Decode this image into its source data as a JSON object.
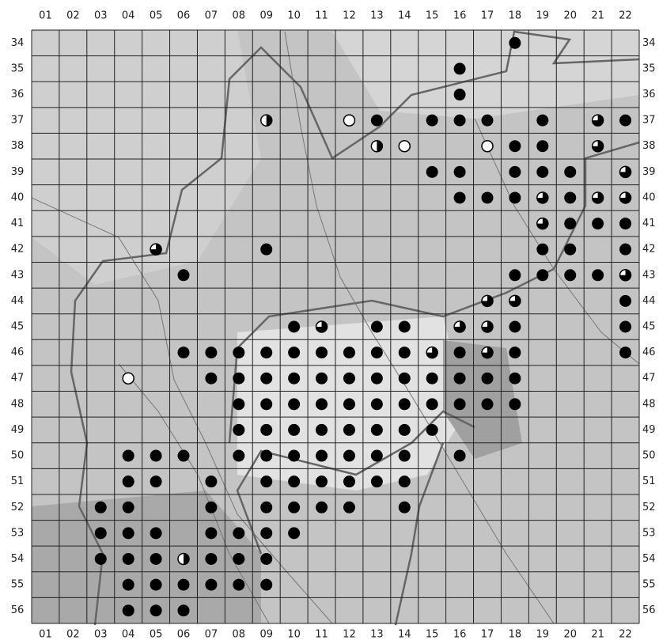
{
  "map": {
    "columns": [
      "01",
      "02",
      "03",
      "04",
      "05",
      "06",
      "07",
      "08",
      "09",
      "10",
      "11",
      "12",
      "13",
      "14",
      "15",
      "16",
      "17",
      "18",
      "19",
      "20",
      "21",
      "22"
    ],
    "rows": [
      "34",
      "35",
      "36",
      "37",
      "38",
      "39",
      "40",
      "41",
      "42",
      "43",
      "44",
      "45",
      "46",
      "47",
      "48",
      "49",
      "50",
      "51",
      "52",
      "53",
      "54",
      "55",
      "56"
    ],
    "records": [
      {
        "row": 34,
        "full": [
          18
        ]
      },
      {
        "row": 35,
        "full": [
          16
        ]
      },
      {
        "row": 36,
        "full": [
          16
        ]
      },
      {
        "row": 37,
        "full": [
          13,
          15,
          16,
          17,
          19,
          22
        ],
        "half": [
          9
        ],
        "threeq": [
          21
        ],
        "open": [
          12
        ]
      },
      {
        "row": 38,
        "full": [
          18,
          19
        ],
        "half": [
          13
        ],
        "threeq": [
          21
        ],
        "open": [
          14,
          17
        ]
      },
      {
        "row": 39,
        "full": [
          15,
          16,
          18,
          19,
          20
        ],
        "threeq": [
          22
        ]
      },
      {
        "row": 40,
        "full": [
          16,
          17,
          18,
          20
        ],
        "threeq": [
          19,
          21,
          22
        ]
      },
      {
        "row": 41,
        "full": [
          20,
          21,
          22
        ],
        "threeq": [
          19
        ]
      },
      {
        "row": 42,
        "full": [
          9,
          19,
          20,
          22
        ],
        "threeq": [
          5
        ]
      },
      {
        "row": 43,
        "full": [
          6,
          18,
          19,
          20,
          21
        ],
        "threeq": [
          22
        ]
      },
      {
        "row": 44,
        "full": [
          22
        ],
        "threeq": [
          17,
          18
        ]
      },
      {
        "row": 45,
        "full": [
          10,
          13,
          14,
          18,
          22
        ],
        "threeq": [
          11,
          16,
          17
        ]
      },
      {
        "row": 46,
        "full": [
          6,
          7,
          8,
          9,
          10,
          11,
          12,
          13,
          14,
          16,
          18,
          22
        ],
        "threeq": [
          15,
          17
        ]
      },
      {
        "row": 47,
        "full": [
          7,
          8,
          9,
          10,
          11,
          12,
          13,
          14,
          15,
          16,
          17,
          18
        ],
        "open": [
          4
        ]
      },
      {
        "row": 48,
        "full": [
          8,
          9,
          10,
          11,
          12,
          13,
          14,
          15,
          16,
          17,
          18
        ]
      },
      {
        "row": 49,
        "full": [
          8,
          9,
          10,
          11,
          12,
          13,
          14,
          15
        ]
      },
      {
        "row": 50,
        "full": [
          4,
          5,
          6,
          8,
          9,
          10,
          11,
          12,
          13,
          14,
          16
        ]
      },
      {
        "row": 51,
        "full": [
          4,
          5,
          7,
          9,
          10,
          11,
          12,
          13,
          14
        ]
      },
      {
        "row": 52,
        "full": [
          3,
          4,
          7,
          9,
          10,
          11,
          12,
          14
        ]
      },
      {
        "row": 53,
        "full": [
          3,
          4,
          5,
          7,
          8,
          9,
          10
        ]
      },
      {
        "row": 54,
        "full": [
          3,
          4,
          5,
          7,
          8,
          9
        ],
        "half": [
          6
        ]
      },
      {
        "row": 55,
        "full": [
          4,
          5,
          6,
          7,
          8,
          9
        ]
      },
      {
        "row": 56,
        "full": [
          4,
          5,
          6
        ]
      }
    ]
  }
}
